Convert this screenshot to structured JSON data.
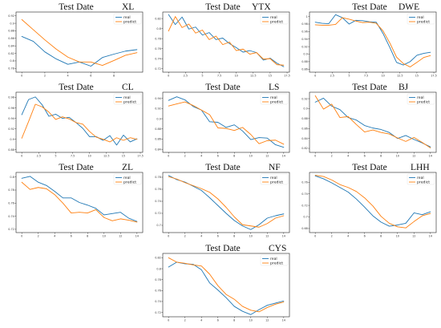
{
  "colors": {
    "real": "#1f77b4",
    "predict": "#ff7f0e"
  },
  "legend_labels": {
    "real": "real",
    "predict": "predict"
  },
  "chart_data": [
    {
      "type": "line",
      "title": "Test Date",
      "code": "XL",
      "legend": "top-right",
      "x": [
        0,
        1,
        2,
        3,
        4,
        5,
        6,
        7,
        8,
        9,
        10
      ],
      "xticks": [
        0,
        2,
        4,
        6,
        8
      ],
      "yticks": [
        0.78,
        0.8,
        0.82,
        0.84,
        0.86,
        0.88,
        0.9,
        0.92
      ],
      "ylim": [
        0.77,
        0.93
      ],
      "series": [
        {
          "name": "real",
          "values": [
            0.865,
            0.852,
            0.824,
            0.805,
            0.791,
            0.797,
            0.786,
            0.809,
            0.818,
            0.826,
            0.83
          ]
        },
        {
          "name": "predict",
          "values": [
            0.91,
            0.883,
            0.856,
            0.831,
            0.81,
            0.797,
            0.797,
            0.788,
            0.801,
            0.815,
            0.822
          ]
        }
      ]
    },
    {
      "type": "line",
      "title": "Test Date",
      "code": "YTX",
      "legend": "top-right",
      "x": [
        0,
        1,
        2,
        3,
        4,
        5,
        6,
        7,
        8,
        9,
        10,
        11,
        12,
        13,
        14,
        15,
        16,
        17
      ],
      "xticks": [
        0,
        2.5,
        5,
        7.5,
        10,
        12.5,
        15,
        17.5
      ],
      "yticks": [
        0.72,
        0.74,
        0.76,
        0.78,
        0.8,
        0.82
      ],
      "ylim": [
        0.713,
        0.833
      ],
      "series": [
        {
          "name": "real",
          "values": [
            0.828,
            0.808,
            0.823,
            0.799,
            0.803,
            0.787,
            0.792,
            0.778,
            0.781,
            0.77,
            0.762,
            0.753,
            0.756,
            0.752,
            0.737,
            0.741,
            0.731,
            0.724
          ]
        },
        {
          "name": "predict",
          "values": [
            0.795,
            0.824,
            0.802,
            0.809,
            0.791,
            0.797,
            0.778,
            0.785,
            0.768,
            0.773,
            0.756,
            0.759,
            0.749,
            0.752,
            0.739,
            0.74,
            0.728,
            0.727
          ]
        }
      ]
    },
    {
      "type": "line",
      "title": "Test Date",
      "code": "DWE",
      "legend": "top-right",
      "x": [
        0,
        1,
        2,
        3,
        4,
        5,
        6,
        7,
        8,
        9,
        10,
        11,
        12,
        13,
        14,
        15,
        16,
        17
      ],
      "xticks": [
        0,
        2.5,
        5,
        7.5,
        10,
        12.5,
        15,
        17.5
      ],
      "yticks": [
        0.86,
        0.88,
        0.9,
        0.92,
        0.94,
        0.96,
        0.98,
        1.0
      ],
      "ylim": [
        0.852,
        1.012
      ],
      "series": [
        {
          "name": "real",
          "values": [
            0.985,
            0.982,
            0.981,
            1.005,
            0.997,
            0.98,
            0.99,
            0.989,
            0.986,
            0.985,
            0.955,
            0.918,
            0.878,
            0.871,
            0.88,
            0.897,
            0.902,
            0.905
          ]
        },
        {
          "name": "predict",
          "values": [
            0.978,
            0.977,
            0.977,
            0.979,
            0.997,
            0.993,
            0.988,
            0.984,
            0.985,
            0.982,
            0.962,
            0.93,
            0.892,
            0.875,
            0.866,
            0.878,
            0.891,
            0.896
          ]
        }
      ]
    },
    {
      "type": "line",
      "title": "Test Date",
      "code": "CL",
      "legend": "top-right",
      "x": [
        0,
        1,
        2,
        3,
        4,
        5,
        6,
        7,
        8,
        9,
        10,
        11,
        12,
        13,
        14,
        15,
        16,
        17
      ],
      "xticks": [
        0,
        2.5,
        5,
        7.5,
        10,
        12.5,
        15,
        17.5
      ],
      "yticks": [
        0.88,
        0.9,
        0.92,
        0.94,
        0.96,
        0.98
      ],
      "ylim": [
        0.875,
        0.99
      ],
      "series": [
        {
          "name": "real",
          "values": [
            0.947,
            0.976,
            0.981,
            0.966,
            0.944,
            0.948,
            0.94,
            0.942,
            0.932,
            0.921,
            0.905,
            0.905,
            0.898,
            0.907,
            0.889,
            0.908,
            0.895,
            0.901
          ]
        },
        {
          "name": "predict",
          "values": [
            0.902,
            0.934,
            0.967,
            0.962,
            0.952,
            0.938,
            0.943,
            0.939,
            0.932,
            0.929,
            0.915,
            0.904,
            0.9,
            0.895,
            0.903,
            0.898,
            0.903,
            0.9
          ]
        }
      ]
    },
    {
      "type": "line",
      "title": "Test Date",
      "code": "LS",
      "legend": "top-right",
      "x": [
        0,
        1,
        2,
        3,
        4,
        5,
        6,
        7,
        8,
        9,
        10,
        11,
        12,
        13,
        14
      ],
      "xticks": [
        0,
        2,
        4,
        6,
        8,
        10,
        12,
        14
      ],
      "yticks": [
        0.84,
        0.86,
        0.88,
        0.9,
        0.92,
        0.94
      ],
      "ylim": [
        0.834,
        0.952
      ],
      "series": [
        {
          "name": "real",
          "values": [
            0.936,
            0.943,
            0.937,
            0.924,
            0.917,
            0.894,
            0.893,
            0.883,
            0.888,
            0.876,
            0.859,
            0.863,
            0.862,
            0.849,
            0.844
          ]
        },
        {
          "name": "predict",
          "values": [
            0.925,
            0.929,
            0.933,
            0.926,
            0.917,
            0.908,
            0.882,
            0.881,
            0.877,
            0.883,
            0.869,
            0.851,
            0.857,
            0.858,
            0.85
          ]
        }
      ]
    },
    {
      "type": "line",
      "title": "Test Date",
      "code": "BJ",
      "legend": "top-right",
      "x": [
        0,
        1,
        2,
        3,
        4,
        5,
        6,
        7,
        8,
        9,
        10,
        11,
        12,
        13,
        14
      ],
      "xticks": [
        0,
        2,
        4,
        6,
        8,
        10,
        12,
        14
      ],
      "yticks": [
        0.82,
        0.84,
        0.86,
        0.88,
        0.9,
        0.92
      ],
      "ylim": [
        0.812,
        0.933
      ],
      "series": [
        {
          "name": "real",
          "values": [
            0.913,
            0.921,
            0.905,
            0.898,
            0.882,
            0.877,
            0.866,
            0.861,
            0.858,
            0.852,
            0.84,
            0.846,
            0.838,
            0.831,
            0.823
          ]
        },
        {
          "name": "predict",
          "values": [
            0.926,
            0.899,
            0.909,
            0.882,
            0.884,
            0.868,
            0.853,
            0.857,
            0.852,
            0.849,
            0.841,
            0.834,
            0.842,
            0.832,
            0.821
          ]
        }
      ]
    },
    {
      "type": "line",
      "title": "Test Date",
      "code": "ZL",
      "legend": "top-right",
      "x": [
        0,
        1,
        2,
        3,
        4,
        5,
        6,
        7,
        8,
        9,
        10,
        11,
        12,
        13,
        14
      ],
      "xticks": [
        0,
        2,
        4,
        6,
        8,
        10,
        12,
        14
      ],
      "yticks": [
        0.72,
        0.74,
        0.76,
        0.78,
        0.8
      ],
      "ylim": [
        0.715,
        0.807
      ],
      "series": [
        {
          "name": "real",
          "values": [
            0.798,
            0.801,
            0.792,
            0.787,
            0.778,
            0.768,
            0.768,
            0.761,
            0.757,
            0.752,
            0.742,
            0.744,
            0.746,
            0.737,
            0.732
          ]
        },
        {
          "name": "predict",
          "values": [
            0.792,
            0.781,
            0.784,
            0.782,
            0.773,
            0.76,
            0.745,
            0.746,
            0.745,
            0.75,
            0.738,
            0.733,
            0.736,
            0.734,
            0.731
          ]
        }
      ]
    },
    {
      "type": "line",
      "title": "Test Date",
      "code": "NF",
      "legend": "top-right",
      "x": [
        0,
        1,
        2,
        3,
        4,
        5,
        6,
        7,
        8,
        9,
        10,
        11,
        12,
        13,
        14
      ],
      "xticks": [
        0,
        2,
        4,
        6,
        8,
        10,
        12,
        14
      ],
      "yticks": [
        0.7,
        0.72,
        0.74,
        0.76,
        0.78
      ],
      "ylim": [
        0.688,
        0.788
      ],
      "series": [
        {
          "name": "real",
          "values": [
            0.783,
            0.776,
            0.772,
            0.765,
            0.758,
            0.746,
            0.733,
            0.72,
            0.708,
            0.699,
            0.693,
            0.701,
            0.712,
            0.716,
            0.719
          ]
        },
        {
          "name": "predict",
          "values": [
            0.781,
            0.777,
            0.771,
            0.766,
            0.761,
            0.755,
            0.744,
            0.73,
            0.714,
            0.701,
            0.699,
            0.697,
            0.703,
            0.712,
            0.716
          ]
        }
      ]
    },
    {
      "type": "line",
      "title": "Test Date",
      "code": "LHH",
      "legend": "top-right",
      "x": [
        0,
        1,
        2,
        3,
        4,
        5,
        6,
        7,
        8,
        9,
        10,
        11,
        12,
        13,
        14
      ],
      "xticks": [
        0,
        2,
        4,
        6,
        8,
        10,
        12,
        14
      ],
      "yticks": [
        0.68,
        0.7,
        0.72,
        0.74,
        0.76
      ],
      "ylim": [
        0.673,
        0.777
      ],
      "series": [
        {
          "name": "real",
          "values": [
            0.771,
            0.766,
            0.759,
            0.751,
            0.743,
            0.731,
            0.717,
            0.702,
            0.691,
            0.684,
            0.686,
            0.689,
            0.707,
            0.704,
            0.709
          ]
        },
        {
          "name": "predict",
          "values": [
            0.772,
            0.77,
            0.764,
            0.756,
            0.751,
            0.744,
            0.733,
            0.719,
            0.701,
            0.689,
            0.683,
            0.681,
            0.692,
            0.702,
            0.706
          ]
        }
      ]
    },
    {
      "type": "line",
      "title": "Test Date",
      "code": "CYS",
      "legend": "top-right",
      "x": [
        0,
        1,
        2,
        3,
        4,
        5,
        6,
        7,
        8,
        9,
        10,
        11,
        12,
        13,
        14
      ],
      "xticks": [
        0,
        2,
        4,
        6,
        8,
        10,
        12,
        14
      ],
      "yticks": [
        0.72,
        0.74,
        0.76,
        0.78,
        0.8,
        0.82
      ],
      "ylim": [
        0.712,
        0.828
      ],
      "series": [
        {
          "name": "real",
          "values": [
            0.803,
            0.812,
            0.809,
            0.808,
            0.798,
            0.774,
            0.761,
            0.747,
            0.731,
            0.722,
            0.716,
            0.725,
            0.733,
            0.737,
            0.741
          ]
        },
        {
          "name": "predict",
          "values": [
            0.82,
            0.812,
            0.81,
            0.807,
            0.805,
            0.79,
            0.769,
            0.753,
            0.744,
            0.731,
            0.724,
            0.721,
            0.729,
            0.735,
            0.739
          ]
        }
      ]
    }
  ]
}
